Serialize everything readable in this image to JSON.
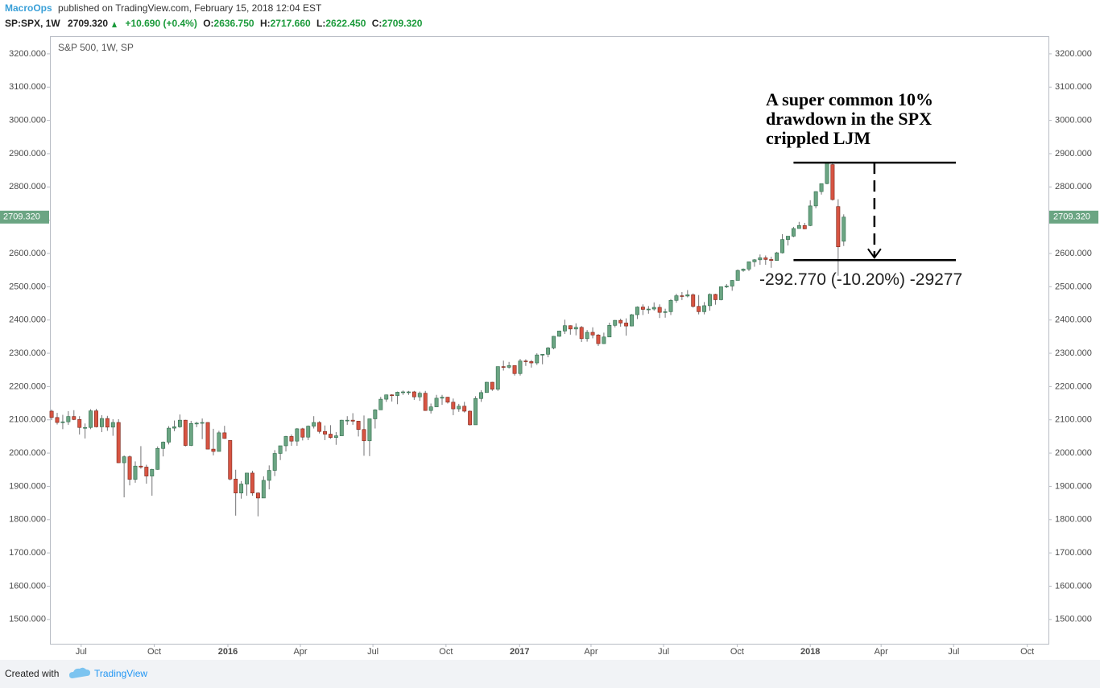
{
  "header": {
    "author": "MacroOps",
    "published": "published on TradingView.com, February 15, 2018 12:04 EST",
    "symbol": "SP:SPX, 1W",
    "last": "2709.320",
    "change": "+10.690 (+0.4%)",
    "open_label": "O:",
    "open": "2636.750",
    "high_label": "H:",
    "high": "2717.660",
    "low_label": "L:",
    "low": "2622.450",
    "close_label": "C:",
    "close": "2709.320"
  },
  "footer": {
    "created": "Created with",
    "brand": "TradingView"
  },
  "chart_data": {
    "type": "candlestick",
    "legend": "S&P 500, 1W, SP",
    "up_color": "#6ba583",
    "down_color": "#d75442",
    "wick_color": "#737375",
    "grid": false,
    "xlim": [
      -0.3,
      178.7
    ],
    "xticks": [
      {
        "value": 5.3,
        "label": "Jul"
      },
      {
        "value": 18.4,
        "label": "Oct"
      },
      {
        "value": 31.6,
        "label": "2016"
      },
      {
        "value": 44.6,
        "label": "Apr"
      },
      {
        "value": 57.6,
        "label": "Jul"
      },
      {
        "value": 70.7,
        "label": "Oct"
      },
      {
        "value": 83.9,
        "label": "2017"
      },
      {
        "value": 96.7,
        "label": "Apr"
      },
      {
        "value": 109.7,
        "label": "Jul"
      },
      {
        "value": 122.9,
        "label": "Oct"
      },
      {
        "value": 136,
        "label": "2018"
      },
      {
        "value": 148.7,
        "label": "Apr"
      },
      {
        "value": 161.7,
        "label": "Jul"
      },
      {
        "value": 174.9,
        "label": "Oct"
      }
    ],
    "ylim": [
      1427,
      3253
    ],
    "yticks": [
      {
        "value": 1500,
        "label": "1500.000"
      },
      {
        "value": 1600,
        "label": "1600.000"
      },
      {
        "value": 1700,
        "label": "1700.000"
      },
      {
        "value": 1800,
        "label": "1800.000"
      },
      {
        "value": 1900,
        "label": "1900.000"
      },
      {
        "value": 2000,
        "label": "2000.000"
      },
      {
        "value": 2100,
        "label": "2100.000"
      },
      {
        "value": 2200,
        "label": "2200.000"
      },
      {
        "value": 2300,
        "label": "2300.000"
      },
      {
        "value": 2400,
        "label": "2400.000"
      },
      {
        "value": 2500,
        "label": "2500.000"
      },
      {
        "value": 2600,
        "label": "2600.000"
      },
      {
        "value": 2700,
        "label": "2700.000"
      },
      {
        "value": 2800,
        "label": "2800.000"
      },
      {
        "value": 2900,
        "label": "2900.000"
      },
      {
        "value": 3000,
        "label": "3000.000"
      },
      {
        "value": 3100,
        "label": "3100.000"
      },
      {
        "value": 3200,
        "label": "3200.000"
      }
    ],
    "last_price": {
      "value": 2709.32,
      "label": "2709.320"
    },
    "open": [
      2126,
      2107,
      2092,
      2094,
      2110,
      2101,
      2077,
      2077,
      2127,
      2079,
      2104,
      2078,
      2092,
      1971,
      1989,
      1921,
      1961,
      1958,
      1931,
      1951,
      2014,
      2033,
      2075,
      2079,
      2099,
      2023,
      2089,
      2090,
      2092,
      2012,
      2005,
      2061,
      2038,
      1922,
      1880,
      1907,
      1940,
      1880,
      1865,
      1918,
      1948,
      1999,
      2022,
      2050,
      2036,
      2073,
      2048,
      2081,
      2092,
      2065,
      2057,
      2047,
      2052,
      2099,
      2099,
      2096,
      2071,
      2037,
      2103,
      2130,
      2162,
      2175,
      2173,
      2183,
      2184,
      2184,
      2169,
      2180,
      2128,
      2139,
      2165,
      2168,
      2153,
      2133,
      2141,
      2126,
      2085,
      2164,
      2182,
      2213,
      2192,
      2260,
      2258,
      2263,
      2239,
      2277,
      2275,
      2271,
      2295,
      2297,
      2316,
      2351,
      2367,
      2383,
      2373,
      2378,
      2344,
      2363,
      2355,
      2329,
      2349,
      2384,
      2399,
      2391,
      2382,
      2416,
      2439,
      2432,
      2433,
      2438,
      2423,
      2425,
      2459,
      2473,
      2472,
      2476,
      2441,
      2425,
      2443,
      2477,
      2461,
      2500,
      2502,
      2519,
      2549,
      2553,
      2575,
      2581,
      2587,
      2582,
      2579,
      2602,
      2642,
      2652,
      2675,
      2684,
      2684,
      2743,
      2786,
      2810,
      2867,
      2741,
      2636.75
    ],
    "high": [
      2131,
      2121,
      2115,
      2126,
      2129,
      2111,
      2089,
      2132,
      2133,
      2114,
      2112,
      2102,
      2102,
      1993,
      1993,
      1975,
      2021,
      1965,
      1953,
      2020,
      2035,
      2081,
      2098,
      2116,
      2100,
      2097,
      2094,
      2104,
      2093,
      2073,
      2067,
      2082,
      2038,
      1950,
      1916,
      1940,
      1947,
      1882,
      1930,
      1963,
      2009,
      2022,
      2052,
      2056,
      2075,
      2076,
      2083,
      2111,
      2096,
      2083,
      2084,
      2063,
      2100,
      2111,
      2120,
      2097,
      2113,
      2103,
      2132,
      2169,
      2176,
      2177,
      2185,
      2188,
      2187,
      2187,
      2185,
      2187,
      2149,
      2175,
      2175,
      2169,
      2164,
      2148,
      2154,
      2128,
      2171,
      2189,
      2214,
      2214,
      2260,
      2278,
      2274,
      2264,
      2283,
      2282,
      2280,
      2300,
      2297,
      2319,
      2352,
      2368,
      2401,
      2384,
      2390,
      2382,
      2370,
      2378,
      2358,
      2362,
      2392,
      2400,
      2404,
      2405,
      2418,
      2441,
      2447,
      2442,
      2453,
      2447,
      2434,
      2463,
      2479,
      2484,
      2490,
      2480,
      2475,
      2454,
      2480,
      2479,
      2500,
      2508,
      2520,
      2552,
      2555,
      2575,
      2583,
      2597,
      2594,
      2590,
      2605,
      2658,
      2652,
      2680,
      2695,
      2692,
      2760,
      2787,
      2810,
      2872.87,
      2870,
      2763,
      2717.66
    ],
    "low": [
      2099,
      2086,
      2072,
      2085,
      2099,
      2056,
      2044,
      2072,
      2077,
      2063,
      2067,
      2052,
      1970,
      1867,
      1903,
      1911,
      1953,
      1908,
      1872,
      1950,
      1990,
      2026,
      2066,
      2076,
      2020,
      2021,
      2078,
      2042,
      2012,
      1993,
      2005,
      2043,
      1918,
      1812,
      1863,
      1872,
      1872,
      1810,
      1865,
      1891,
      1931,
      1979,
      2005,
      2022,
      2022,
      2038,
      2039,
      2074,
      2059,
      2039,
      2043,
      2025,
      2052,
      2085,
      2085,
      2050,
      1992,
      1991,
      2074,
      2130,
      2154,
      2155,
      2147,
      2175,
      2175,
      2160,
      2157,
      2127,
      2119,
      2139,
      2145,
      2149,
      2114,
      2124,
      2122,
      2083,
      2085,
      2154,
      2182,
      2187,
      2187,
      2248,
      2254,
      2233,
      2233,
      2262,
      2257,
      2265,
      2267,
      2288,
      2312,
      2350,
      2358,
      2356,
      2354,
      2334,
      2335,
      2345,
      2322,
      2328,
      2349,
      2378,
      2380,
      2353,
      2381,
      2403,
      2415,
      2419,
      2428,
      2406,
      2407,
      2415,
      2452,
      2460,
      2468,
      2437,
      2417,
      2417,
      2428,
      2446,
      2459,
      2496,
      2488,
      2519,
      2545,
      2547,
      2560,
      2566,
      2566,
      2557,
      2578,
      2600,
      2624,
      2649,
      2675,
      2673,
      2682,
      2736,
      2777,
      2808,
      2759,
      2533,
      2622.45
    ],
    "close": [
      2107,
      2092,
      2094,
      2110,
      2101,
      2077,
      2077,
      2127,
      2079,
      2104,
      2078,
      2092,
      1971,
      1989,
      1921,
      1961,
      1958,
      1931,
      1951,
      2014,
      2033,
      2075,
      2079,
      2099,
      2023,
      2089,
      2090,
      2092,
      2012,
      2005,
      2061,
      2044,
      1922,
      1880,
      1907,
      1940,
      1880,
      1865,
      1918,
      1948,
      1999,
      2022,
      2050,
      2036,
      2073,
      2048,
      2081,
      2092,
      2065,
      2057,
      2047,
      2052,
      2099,
      2099,
      2096,
      2071,
      2037,
      2103,
      2130,
      2162,
      2175,
      2173,
      2183,
      2184,
      2184,
      2169,
      2180,
      2128,
      2139,
      2165,
      2168,
      2153,
      2133,
      2141,
      2126,
      2085,
      2164,
      2182,
      2213,
      2192,
      2260,
      2258,
      2263,
      2239,
      2277,
      2275,
      2271,
      2295,
      2297,
      2316,
      2351,
      2367,
      2383,
      2373,
      2378,
      2344,
      2363,
      2355,
      2329,
      2349,
      2384,
      2399,
      2391,
      2382,
      2416,
      2439,
      2432,
      2433,
      2438,
      2423,
      2425,
      2459,
      2473,
      2472,
      2476,
      2441,
      2425,
      2443,
      2477,
      2461,
      2500,
      2502,
      2519,
      2549,
      2553,
      2575,
      2581,
      2587,
      2582,
      2579,
      2602,
      2642,
      2652,
      2675,
      2684,
      2674,
      2743,
      2786,
      2810,
      2872.87,
      2762,
      2620,
      2709.32
    ],
    "annotation": [
      "A super common 10%",
      "drawdown in the SPX",
      "crippled LJM"
    ],
    "measure": {
      "label": "-292.770 (-10.20%) -29277",
      "top": 2872.87,
      "bottom": 2580.1,
      "x_start": 133.0,
      "x_end": 162.1,
      "arrow_x": 147.5
    }
  }
}
